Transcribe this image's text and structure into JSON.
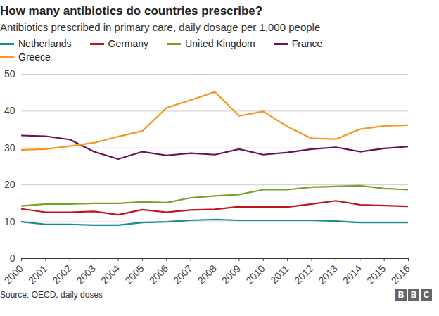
{
  "chart_data": {
    "type": "line",
    "title": "How many antibiotics do countries prescribe?",
    "subtitle": "Antibiotics prescribed in primary care, daily dosage per 1,000 people",
    "caption": "Source: OECD, daily doses",
    "logo": "BBC",
    "x": [
      2000,
      2001,
      2002,
      2003,
      2004,
      2005,
      2006,
      2007,
      2008,
      2009,
      2010,
      2011,
      2012,
      2013,
      2014,
      2015,
      2016
    ],
    "xlim": [
      2000,
      2016
    ],
    "xticks": [
      2000,
      2001,
      2002,
      2003,
      2004,
      2005,
      2006,
      2007,
      2008,
      2009,
      2010,
      2011,
      2012,
      2013,
      2014,
      2015,
      2016
    ],
    "ylim": [
      0,
      50
    ],
    "yticks": [
      0,
      10,
      20,
      30,
      40,
      50
    ],
    "grid": true,
    "legend": "top-left",
    "series": [
      {
        "name": "Netherlands",
        "color": "#1b8c8c",
        "values": [
          10.0,
          9.3,
          9.3,
          9.1,
          9.1,
          9.8,
          10.0,
          10.4,
          10.6,
          10.4,
          10.4,
          10.4,
          10.4,
          10.2,
          9.8,
          9.8,
          9.8
        ]
      },
      {
        "name": "Germany",
        "color": "#c0161b",
        "values": [
          13.5,
          12.6,
          12.6,
          12.8,
          11.9,
          13.3,
          12.6,
          13.2,
          13.4,
          14.1,
          14.0,
          14.0,
          14.8,
          15.7,
          14.6,
          14.4,
          14.2
        ]
      },
      {
        "name": "United Kingdom",
        "color": "#76a229",
        "values": [
          14.3,
          14.8,
          14.8,
          15.0,
          15.0,
          15.4,
          15.2,
          16.5,
          17.0,
          17.4,
          18.7,
          18.7,
          19.4,
          19.6,
          19.8,
          19.0,
          18.7
        ]
      },
      {
        "name": "France",
        "color": "#6b1250",
        "values": [
          33.4,
          33.2,
          32.3,
          29.0,
          27.0,
          29.0,
          28.0,
          28.6,
          28.2,
          29.7,
          28.2,
          28.8,
          29.7,
          30.2,
          29.0,
          29.9,
          30.4
        ]
      },
      {
        "name": "Greece",
        "color": "#f7951f",
        "values": [
          29.5,
          29.7,
          30.5,
          31.4,
          33.1,
          34.6,
          40.9,
          43.0,
          45.2,
          38.7,
          39.9,
          35.8,
          32.6,
          32.4,
          35.1,
          36.0,
          36.2
        ]
      }
    ]
  }
}
